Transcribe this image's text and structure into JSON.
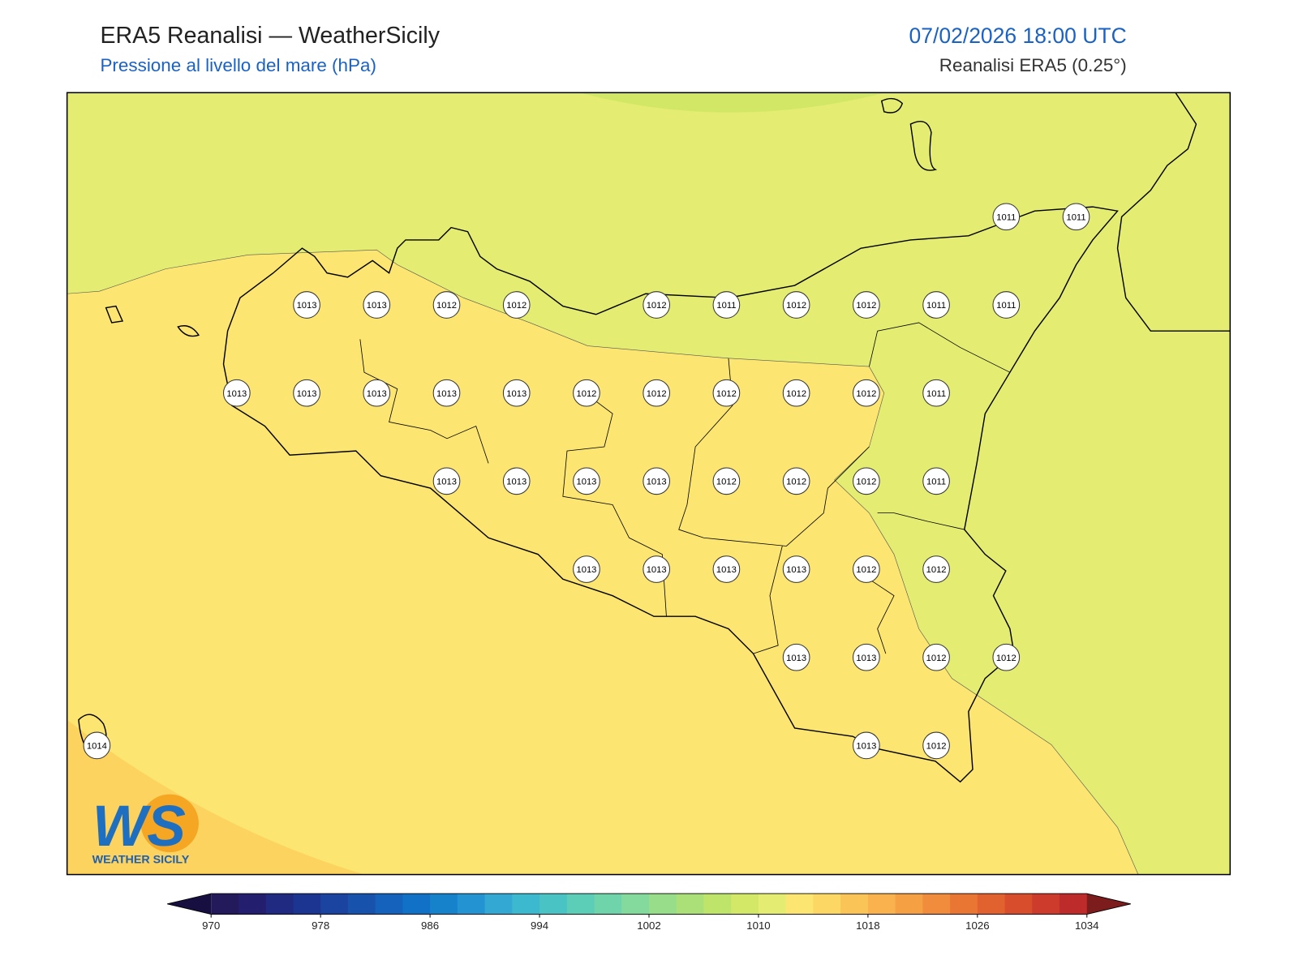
{
  "header": {
    "title": "ERA5 Reanalisi — WeatherSicily",
    "subtitle": "Pressione al livello del mare (hPa)",
    "datetime": "07/02/2026 18:00 UTC",
    "source": "Reanalisi ERA5 (0.25°)"
  },
  "logo": {
    "mark": "WS",
    "text": "WEATHER SICILY"
  },
  "pressure_labels": [
    1011,
    1011,
    1013,
    1013,
    1012,
    1012,
    1012,
    1011,
    1012,
    1012,
    1011,
    1011,
    1013,
    1013,
    1013,
    1013,
    1013,
    1012,
    1012,
    1012,
    1012,
    1012,
    1011,
    1013,
    1013,
    1013,
    1013,
    1012,
    1012,
    1012,
    1011,
    1013,
    1013,
    1013,
    1013,
    1012,
    1012,
    1013,
    1013,
    1012,
    1012,
    1014,
    1013,
    1012
  ],
  "colorbar": {
    "range": [
      970,
      1034
    ],
    "ticks": [
      970,
      978,
      986,
      994,
      1002,
      1010,
      1018,
      1026,
      1034
    ],
    "under_color": "#160f3f",
    "over_color": "#7c1c1c",
    "colors": [
      "#231a5c",
      "#231f6e",
      "#1f2a80",
      "#1c3590",
      "#1a449f",
      "#1752ad",
      "#1462bb",
      "#1171c6",
      "#1782cc",
      "#2394d1",
      "#33a8d3",
      "#3cb9cf",
      "#4ac3c4",
      "#5ccdb7",
      "#70d4ab",
      "#84da9c",
      "#97dd8a",
      "#abe078",
      "#bee46a",
      "#d2e866",
      "#e4ed72",
      "#fce570",
      "#fcd764",
      "#fbc457",
      "#f9b24e",
      "#f5a043",
      "#f08c3b",
      "#ea7634",
      "#e2622f",
      "#d84e2c",
      "#cc3b2b",
      "#bd2b2b"
    ]
  }
}
